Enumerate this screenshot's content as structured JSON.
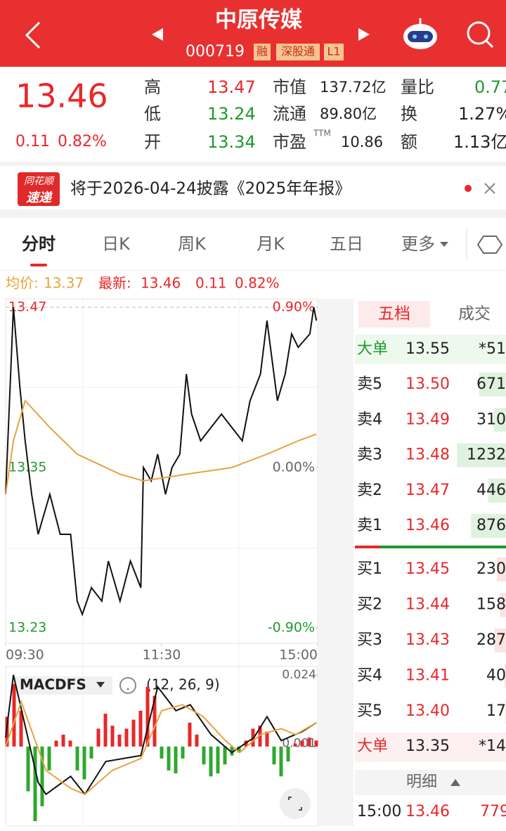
{
  "header": {
    "title": "中原传媒",
    "code": "000719",
    "badges": [
      "融",
      "深股通",
      "L1"
    ]
  },
  "quote": {
    "price": "13.46",
    "change": "0.11",
    "change_pct": "0.82%",
    "high": {
      "label": "高",
      "value": "13.47"
    },
    "low": {
      "label": "低",
      "value": "13.24"
    },
    "open": {
      "label": "开",
      "value": "13.34"
    },
    "market_cap": {
      "label": "市值",
      "value": "137.72亿"
    },
    "float_cap": {
      "label": "流通",
      "value": "89.80亿"
    },
    "pe": {
      "label": "市盈",
      "sup": "TTM",
      "value": "10.86"
    },
    "volume_ratio": {
      "label": "量比",
      "value": "0.77"
    },
    "turnover": {
      "label": "换",
      "value": "1.27%"
    },
    "amount": {
      "label": "额",
      "value": "1.13亿"
    }
  },
  "notice": {
    "logo_top": "同花顺",
    "logo_bottom": "速递",
    "text": "将于2026-04-24披露《2025年年报》"
  },
  "tabs": [
    "分时",
    "日K",
    "周K",
    "月K",
    "五日",
    "更多"
  ],
  "chart_data": [
    {
      "type": "line",
      "avg_label": "均价:",
      "avg": 13.37,
      "last_label": "最新:",
      "last": 13.46,
      "change": 0.11,
      "change_pct": "0.82%",
      "xlim": [
        0,
        240
      ],
      "xticks": [
        {
          "value": 0,
          "label": "09:30"
        },
        {
          "value": 120,
          "label": "11:30"
        },
        {
          "value": 240,
          "label": "15:00"
        }
      ],
      "ylim": [
        13.23,
        13.47
      ],
      "yticks": [
        13.47,
        13.35,
        13.23
      ],
      "y2lim": [
        -0.9,
        0.9
      ],
      "y2ticks": [
        {
          "value": 0.9,
          "label": "0.90%"
        },
        {
          "value": 0,
          "label": "0.00%"
        },
        {
          "value": -0.9,
          "label": "-0.90%"
        }
      ],
      "series": [
        {
          "color": "#111111",
          "x": [
            0,
            6,
            11,
            15,
            20,
            25,
            34,
            42,
            50,
            55,
            59,
            66,
            74,
            79,
            88,
            96,
            104,
            106,
            112,
            117,
            123,
            128,
            134,
            139,
            143,
            150,
            158,
            166,
            174,
            182,
            188,
            196,
            201,
            209,
            215,
            220,
            225,
            234,
            237,
            239
          ],
          "values": [
            13.33,
            13.47,
            13.41,
            13.37,
            13.33,
            13.3,
            13.33,
            13.3,
            13.3,
            13.25,
            13.24,
            13.26,
            13.25,
            13.28,
            13.25,
            13.28,
            13.26,
            13.35,
            13.34,
            13.36,
            13.33,
            13.35,
            13.36,
            13.42,
            13.39,
            13.37,
            13.38,
            13.39,
            13.38,
            13.37,
            13.4,
            13.42,
            13.46,
            13.4,
            13.42,
            13.45,
            13.44,
            13.45,
            13.47,
            13.46
          ]
        },
        {
          "color": "#e8a33c",
          "x": [
            0,
            6,
            15,
            34,
            55,
            88,
            106,
            139,
            174,
            201,
            225,
            239
          ],
          "values": [
            13.33,
            13.37,
            13.4,
            13.38,
            13.36,
            13.345,
            13.34,
            13.345,
            13.35,
            13.36,
            13.37,
            13.375
          ]
        }
      ]
    },
    {
      "type": "macd",
      "title": "MACDFS",
      "params": "(12, 26, 9)",
      "xlim": [
        0,
        240
      ],
      "ylim": [
        -0.025,
        0.024
      ],
      "yticks": [
        0.024,
        0.001
      ],
      "up_color": "#e8282a",
      "down_color": "#2ea82e",
      "histogram": [
        0.01,
        0.021,
        0.012,
        -0.015,
        -0.025,
        -0.02,
        -0.008,
        0.002,
        0.004,
        0.002,
        -0.008,
        -0.011,
        -0.004,
        0.006,
        0.011,
        0.007,
        0.004,
        0.006,
        0.009,
        0.012,
        0.02,
        0.017,
        -0.004,
        -0.008,
        -0.009,
        -0.004,
        0.008,
        0.004,
        -0.006,
        -0.01,
        -0.009,
        -0.006,
        -0.003,
        -0.002,
        0.002,
        0.006,
        0.007,
        0.005,
        -0.006,
        -0.01,
        -0.005,
        0.001,
        0.002,
        0.003,
        0.002
      ],
      "series": [
        {
          "color": "#111111",
          "x": [
            0,
            6,
            25,
            31,
            50,
            61,
            77,
            104,
            117,
            131,
            142,
            158,
            174,
            191,
            201,
            212,
            228,
            239
          ],
          "values": [
            0.003,
            0.024,
            -0.012,
            -0.016,
            -0.01,
            -0.016,
            -0.005,
            -0.003,
            0.02,
            0.012,
            0.014,
            0.004,
            -0.002,
            0.003,
            0.01,
            0.002,
            0.005,
            0.008
          ]
        },
        {
          "color": "#e8a33c",
          "x": [
            0,
            12,
            31,
            50,
            61,
            82,
            104,
            120,
            136,
            152,
            169,
            180,
            196,
            212,
            223,
            239
          ],
          "values": [
            0.0,
            0.015,
            -0.008,
            -0.014,
            -0.016,
            -0.008,
            -0.004,
            0.012,
            0.014,
            0.01,
            0.002,
            -0.002,
            0.004,
            0.006,
            0.004,
            0.008
          ]
        }
      ]
    }
  ],
  "order_book": {
    "tabs": [
      "五档",
      "成交"
    ],
    "top_big": {
      "label": "大单",
      "price": "13.55",
      "volume": "*51"
    },
    "asks": [
      {
        "label": "卖5",
        "price": "13.50",
        "volume": "671"
      },
      {
        "label": "卖4",
        "price": "13.49",
        "volume": "310"
      },
      {
        "label": "卖3",
        "price": "13.48",
        "volume": "1232"
      },
      {
        "label": "卖2",
        "price": "13.47",
        "volume": "446"
      },
      {
        "label": "卖1",
        "price": "13.46",
        "volume": "876"
      }
    ],
    "bids": [
      {
        "label": "买1",
        "price": "13.45",
        "volume": "230"
      },
      {
        "label": "买2",
        "price": "13.44",
        "volume": "158"
      },
      {
        "label": "买3",
        "price": "13.43",
        "volume": "287"
      },
      {
        "label": "买4",
        "price": "13.41",
        "volume": "40"
      },
      {
        "label": "买5",
        "price": "13.40",
        "volume": "17"
      }
    ],
    "bottom_big": {
      "label": "大单",
      "price": "13.35",
      "volume": "*14"
    },
    "detail": "明细",
    "trade": {
      "time": "15:00",
      "price": "13.46",
      "volume": "779"
    }
  }
}
